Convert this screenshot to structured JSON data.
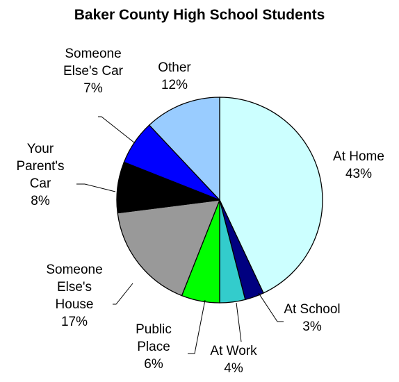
{
  "chart_data": {
    "type": "pie",
    "title": "Baker County High School Students",
    "start": "12 o'clock",
    "direction": "clockwise",
    "slices": [
      {
        "label_lines": [
          "At Home"
        ],
        "pct_label": "43%",
        "value": 43,
        "color": "#ccffff"
      },
      {
        "label_lines": [
          "At School"
        ],
        "pct_label": "3%",
        "value": 3,
        "color": "#000080"
      },
      {
        "label_lines": [
          "At Work"
        ],
        "pct_label": "4%",
        "value": 4,
        "color": "#33cccc"
      },
      {
        "label_lines": [
          "Public",
          "Place"
        ],
        "pct_label": "6%",
        "value": 6,
        "color": "#00ff00"
      },
      {
        "label_lines": [
          "Someone",
          "Else's",
          "House"
        ],
        "pct_label": "17%",
        "value": 17,
        "color": "#999999"
      },
      {
        "label_lines": [
          "Your",
          "Parent's",
          "Car"
        ],
        "pct_label": "8%",
        "value": 8,
        "color": "#000000"
      },
      {
        "label_lines": [
          "Someone",
          "Else's Car"
        ],
        "pct_label": "7%",
        "value": 7,
        "color": "#0000ff"
      },
      {
        "label_lines": [
          "Other"
        ],
        "pct_label": "12%",
        "value": 12,
        "color": "#99ccff"
      }
    ]
  }
}
